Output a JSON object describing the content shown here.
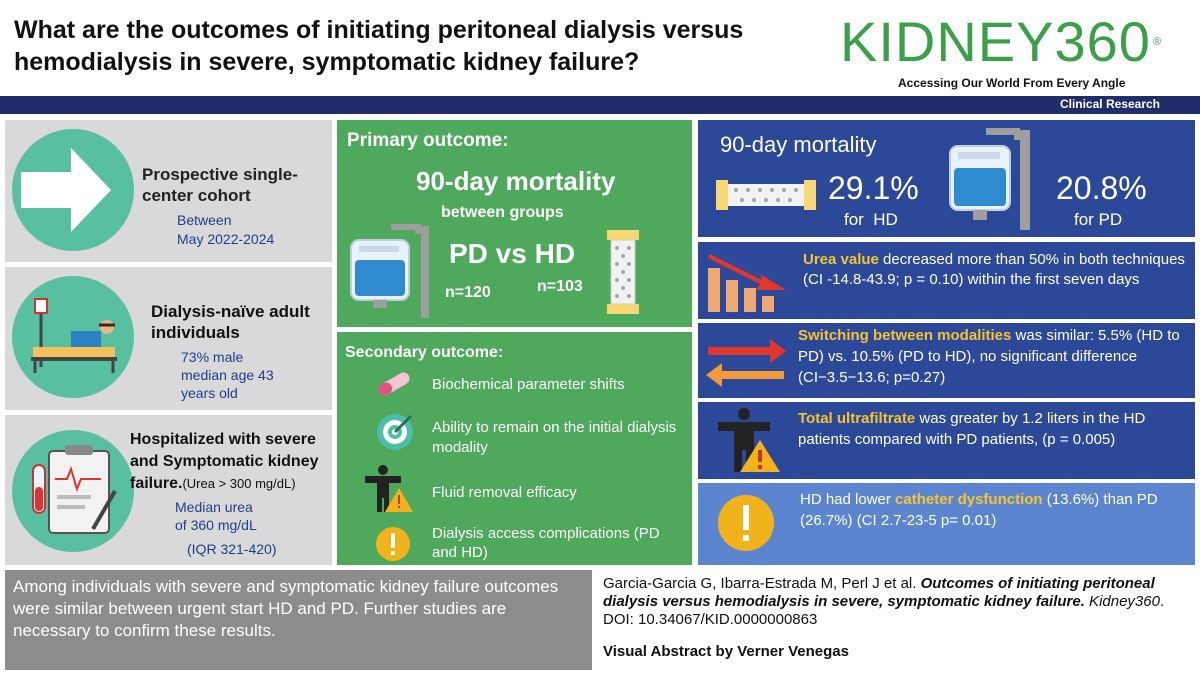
{
  "header": {
    "title": "What are the outcomes of initiating peritoneal dialysis versus hemodialysis in severe, symptomatic kidney failure?",
    "logo": "KIDNEY360",
    "logo_mark": "®",
    "tagline": "Accessing Our World From Every Angle",
    "category": "Clinical Research"
  },
  "left": {
    "cohort": {
      "title": "Prospective single-center cohort",
      "line1": "Between",
      "line2": "May 2022-2024"
    },
    "population": {
      "title": "Dialysis-naïve adult individuals",
      "line1": "73% male",
      "line2": "median age 43",
      "line3": "years old"
    },
    "hospitalized": {
      "title": "Hospitalized with severe and Symptomatic kidney failure.",
      "urea_note": "(Urea > 300 mg/dL)",
      "line1": "Median urea",
      "line2": "of 360 mg/dL",
      "line3": "(IQR 321-420)"
    }
  },
  "primary": {
    "heading": "Primary outcome:",
    "measure": "90-day mortality",
    "sub": "between groups",
    "comparison": "PD vs HD",
    "n_pd": "n=120",
    "n_hd": "n=103"
  },
  "secondary": {
    "heading": "Secondary outcome:",
    "items": [
      "Biochemical parameter shifts",
      "Ability to remain on the initial dialysis modality",
      "Fluid removal efficacy",
      "Dialysis access complications (PD and HD)"
    ]
  },
  "mortality": {
    "heading": "90-day mortality",
    "hd_value": "29.1%",
    "hd_label": "for  HD",
    "pd_value": "20.8%",
    "pd_label": "for PD"
  },
  "findings": {
    "urea": {
      "highlight": "Urea value",
      "text": " decreased more than 50% in both techniques (CI -14.8-43.9; p = 0.10) within the first seven days"
    },
    "switching": {
      "highlight": "Switching between modalities",
      "text": " was similar: 5.5% (HD to PD) vs. 10.5% (PD to HD), no significant difference (CI−3.5−13.6; p=0.27)"
    },
    "ultrafiltrate": {
      "highlight": "Total ultrafiltrate",
      "text": " was greater by 1.2 liters in the HD patients compared with PD patients, (p = 0.005)"
    },
    "catheter": {
      "pre": "HD had lower ",
      "highlight": "catheter dysfunction",
      "text": " (13.6%) than PD (26.7%) (CI 2.7-23-5 p= 0.01)"
    }
  },
  "conclusion": "Among individuals with severe and symptomatic kidney failure outcomes were similar between urgent start HD and PD. Further studies are necessary to confirm these results.",
  "citation": {
    "authors": "Garcia-Garcia G, Ibarra-Estrada M, Perl J et al. ",
    "title": "Outcomes of initiating peritoneal dialysis versus hemodialysis in severe, symptomatic kidney failure.",
    "journal": " Kidney360",
    "doi": ". DOI: 10.34067/KID.0000000863"
  },
  "credit": "Visual Abstract by Verner Venegas"
}
